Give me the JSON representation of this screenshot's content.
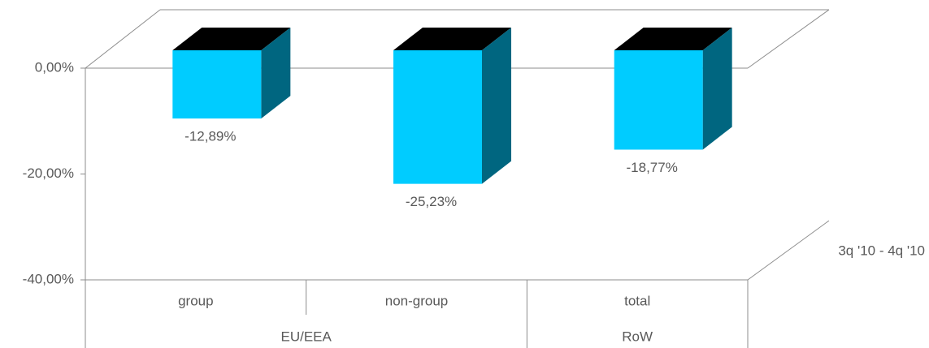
{
  "chart_data": {
    "type": "bar3d",
    "categories": [
      "group",
      "non-group",
      "total"
    ],
    "groups": [
      "EU/EEA",
      "EU/EEA",
      "RoW"
    ],
    "series": [
      {
        "name": "3q '10 - 4q '10",
        "color": "#00ccff",
        "side_color": "#006680",
        "top_color": "#000000",
        "values": [
          -12.89,
          -25.23,
          -18.77
        ],
        "value_labels": [
          "-12,89%",
          "-25,23%",
          "-18,77%"
        ]
      }
    ],
    "ylim": [
      -40,
      0
    ],
    "yticks": [
      {
        "value": 0,
        "label": "0,00%"
      },
      {
        "value": -20,
        "label": "-20,00%"
      },
      {
        "value": -40,
        "label": "-40,00%"
      }
    ]
  }
}
